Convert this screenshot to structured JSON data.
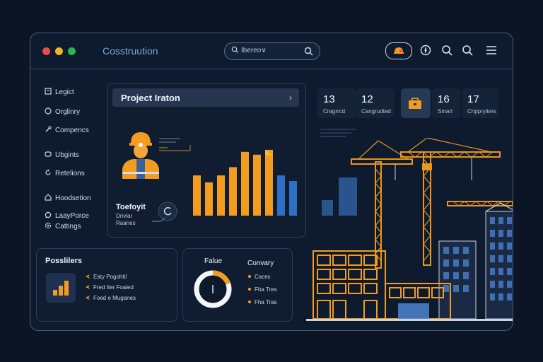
{
  "window": {
    "title": "Cosstruution",
    "controls": [
      {
        "name": "close",
        "color": "#e94d4d"
      },
      {
        "name": "minimize",
        "color": "#f2b51c"
      },
      {
        "name": "maximize",
        "color": "#25b84a"
      }
    ]
  },
  "search": {
    "text": "Ibereo∨"
  },
  "toolbar_icons": [
    "helmet-badge-icon",
    "compass-icon",
    "search-icon",
    "search-icon",
    "menu-icon"
  ],
  "sidebar": {
    "items": [
      {
        "label": "Legict",
        "icon": "document-icon"
      },
      {
        "label": "Orglinry",
        "icon": "circle-icon"
      },
      {
        "label": "Compencs",
        "icon": "wrench-icon"
      },
      {
        "label": "Ubgints",
        "icon": "stack-icon"
      },
      {
        "label": "Retelions",
        "icon": "refresh-icon"
      },
      {
        "label": "Hoodsetion",
        "icon": "home-icon"
      },
      {
        "label": "LaayPorce",
        "icon": "chat-icon"
      },
      {
        "label": "Cattings",
        "icon": "gear-icon"
      }
    ]
  },
  "project": {
    "header": "Project Iraton",
    "chevron": "›",
    "worker_label": "Toefoyit",
    "worker_sub1": "Drivlar",
    "worker_sub2": "Raanes",
    "bar_values": [
      58,
      48,
      58,
      70,
      92,
      88,
      95,
      58,
      50
    ],
    "bar_colors": [
      "#f39c1f",
      "#f39c1f",
      "#f39c1f",
      "#f39c1f",
      "#f39c1f",
      "#f39c1f",
      "#f39c1f",
      "#2f6fc4",
      "#2f6fc4"
    ]
  },
  "stats": [
    {
      "value": "13",
      "label": "Cragrrcd"
    },
    {
      "value": "12",
      "label": "Cangrudted"
    },
    {
      "value": "",
      "label": "",
      "icon": "toolbox-icon"
    },
    {
      "value": "16",
      "label": "Smarl"
    },
    {
      "value": "17",
      "label": "Cnppryiters"
    }
  ],
  "positions": {
    "title": "Posslilers",
    "items": [
      "Eaty Pogohtil",
      "Fred Iter Foaled",
      "Foed e Muganes"
    ]
  },
  "progress_card": {
    "title": "Falue",
    "percent": 78,
    "company_title": "Convary",
    "items": [
      "Cacec",
      "Fha Tres",
      "Fha Tras"
    ]
  },
  "colors": {
    "accent": "#f39c1f",
    "blue": "#2f6fc4",
    "panel": "#101d31"
  }
}
